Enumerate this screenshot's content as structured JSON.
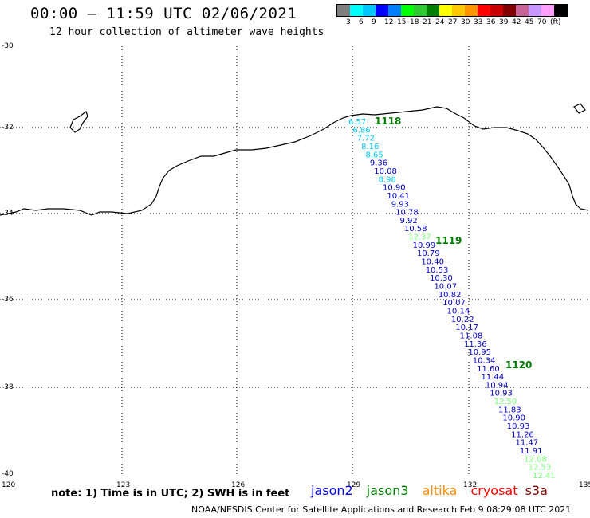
{
  "header": {
    "title": "00:00 – 11:59 UTC 02/06/2021",
    "subtitle": "12 hour collection of altimeter wave heights"
  },
  "legend": {
    "colors": [
      "#7f7f7f",
      "#00ffff",
      "#00c8ff",
      "#0000ff",
      "#0080ff",
      "#00ff00",
      "#30c830",
      "#008000",
      "#ffff00",
      "#ffc800",
      "#ff9600",
      "#ff0000",
      "#c80000",
      "#800000",
      "#c86496",
      "#c896ff",
      "#ffa0ff",
      "#000000"
    ],
    "labels": [
      "3",
      "6",
      "9",
      "12",
      "15",
      "18",
      "21",
      "24",
      "27",
      "30",
      "33",
      "36",
      "39",
      "42",
      "45",
      "70",
      "(ft)"
    ]
  },
  "axes": {
    "lat_labels": [
      "-30",
      "-32",
      "-34",
      "-36",
      "-38",
      "-40"
    ],
    "lon_labels": [
      "120",
      "123",
      "126",
      "129",
      "132",
      "135"
    ]
  },
  "observations": [
    {
      "v": "6.57",
      "c": "#00c8ff"
    },
    {
      "v": "6.86",
      "c": "#00c8ff"
    },
    {
      "v": "7.72",
      "c": "#00c8ff"
    },
    {
      "v": "8.16",
      "c": "#00c8ff"
    },
    {
      "v": "8.65",
      "c": "#00c8ff"
    },
    {
      "v": "9.36",
      "c": "#0000c8"
    },
    {
      "v": "10.08",
      "c": "#0000c8"
    },
    {
      "v": "8.98",
      "c": "#00c8ff"
    },
    {
      "v": "10.90",
      "c": "#0000c8"
    },
    {
      "v": "10.41",
      "c": "#0000c8"
    },
    {
      "v": "9.93",
      "c": "#0000c8"
    },
    {
      "v": "10.78",
      "c": "#0000c8"
    },
    {
      "v": "9.92",
      "c": "#0000c8"
    },
    {
      "v": "10.58",
      "c": "#0000c8"
    },
    {
      "v": "12.37",
      "c": "#7cfc7c"
    },
    {
      "v": "10.99",
      "c": "#0000c8"
    },
    {
      "v": "10.79",
      "c": "#0000c8"
    },
    {
      "v": "10.40",
      "c": "#0000c8"
    },
    {
      "v": "10.53",
      "c": "#0000c8"
    },
    {
      "v": "10.30",
      "c": "#0000c8"
    },
    {
      "v": "10.07",
      "c": "#0000c8"
    },
    {
      "v": "10.82",
      "c": "#0000c8"
    },
    {
      "v": "10.07",
      "c": "#0000c8"
    },
    {
      "v": "10.14",
      "c": "#0000c8"
    },
    {
      "v": "10.22",
      "c": "#0000c8"
    },
    {
      "v": "10.17",
      "c": "#0000c8"
    },
    {
      "v": "11.08",
      "c": "#0000c8"
    },
    {
      "v": "11.36",
      "c": "#0000c8"
    },
    {
      "v": "10.95",
      "c": "#0000c8"
    },
    {
      "v": "10.34",
      "c": "#0000c8"
    },
    {
      "v": "11.60",
      "c": "#0000c8"
    },
    {
      "v": "11.44",
      "c": "#0000c8"
    },
    {
      "v": "10.94",
      "c": "#0000c8"
    },
    {
      "v": "10.93",
      "c": "#0000c8"
    },
    {
      "v": "12.50",
      "c": "#7cfc7c"
    },
    {
      "v": "11.83",
      "c": "#0000c8"
    },
    {
      "v": "10.90",
      "c": "#0000c8"
    },
    {
      "v": "10.93",
      "c": "#0000c8"
    },
    {
      "v": "11.26",
      "c": "#0000c8"
    },
    {
      "v": "11.47",
      "c": "#0000c8"
    },
    {
      "v": "11.91",
      "c": "#0000c8"
    },
    {
      "v": "12.08",
      "c": "#7cfc7c"
    },
    {
      "v": "12.53",
      "c": "#7cfc7c"
    },
    {
      "v": "12.41",
      "c": "#7cfc7c"
    }
  ],
  "pass_labels": [
    "1118",
    "1119",
    "1120"
  ],
  "footer": {
    "note": "note: 1) Time is in UTC; 2) SWH is in feet",
    "satellites": [
      {
        "name": "jason2",
        "color": "#0000ff"
      },
      {
        "name": "jason3",
        "color": "#008000"
      },
      {
        "name": "altika",
        "color": "#ff8c00"
      },
      {
        "name": "cryosat",
        "color": "#ff0000"
      },
      {
        "name": "s3a",
        "color": "#800000"
      }
    ],
    "credit": "NOAA/NESDIS Center for Satellite Applications and Research    Feb  9 08:29:08 UTC 2021"
  }
}
